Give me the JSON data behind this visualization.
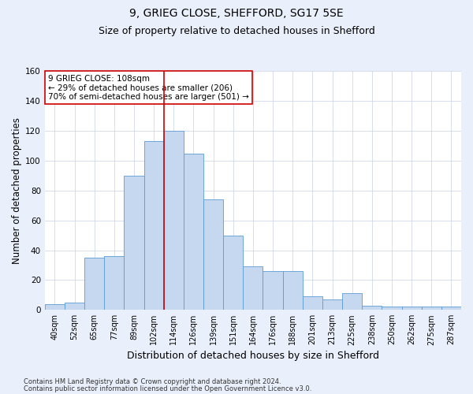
{
  "title1": "9, GRIEG CLOSE, SHEFFORD, SG17 5SE",
  "title2": "Size of property relative to detached houses in Shefford",
  "xlabel": "Distribution of detached houses by size in Shefford",
  "ylabel": "Number of detached properties",
  "footnote1": "Contains HM Land Registry data © Crown copyright and database right 2024.",
  "footnote2": "Contains public sector information licensed under the Open Government Licence v3.0.",
  "annotation_line1": "9 GRIEG CLOSE: 108sqm",
  "annotation_line2": "← 29% of detached houses are smaller (206)",
  "annotation_line3": "70% of semi-detached houses are larger (501) →",
  "bar_labels": [
    "40sqm",
    "52sqm",
    "65sqm",
    "77sqm",
    "89sqm",
    "102sqm",
    "114sqm",
    "126sqm",
    "139sqm",
    "151sqm",
    "164sqm",
    "176sqm",
    "188sqm",
    "201sqm",
    "213sqm",
    "225sqm",
    "238sqm",
    "250sqm",
    "262sqm",
    "275sqm",
    "287sqm"
  ],
  "bar_values": [
    4,
    5,
    35,
    36,
    90,
    113,
    120,
    105,
    74,
    50,
    29,
    26,
    26,
    9,
    7,
    11,
    3,
    2,
    2,
    2,
    2
  ],
  "bar_color": "#c5d8f0",
  "bar_edge_color": "#5b9bd5",
  "vline_x": 5.5,
  "vline_color": "#cc0000",
  "ylim": [
    0,
    160
  ],
  "yticks": [
    0,
    20,
    40,
    60,
    80,
    100,
    120,
    140,
    160
  ],
  "bg_color": "#eaf0fb",
  "plot_bg_color": "#ffffff",
  "grid_color": "#c8d0e8",
  "title1_fontsize": 10,
  "title2_fontsize": 9,
  "xlabel_fontsize": 9,
  "ylabel_fontsize": 8.5,
  "tick_fontsize": 7,
  "annotation_fontsize": 7.5,
  "annotation_box_color": "#ffffff",
  "annotation_box_edge": "#cc0000",
  "footnote_fontsize": 6.0
}
